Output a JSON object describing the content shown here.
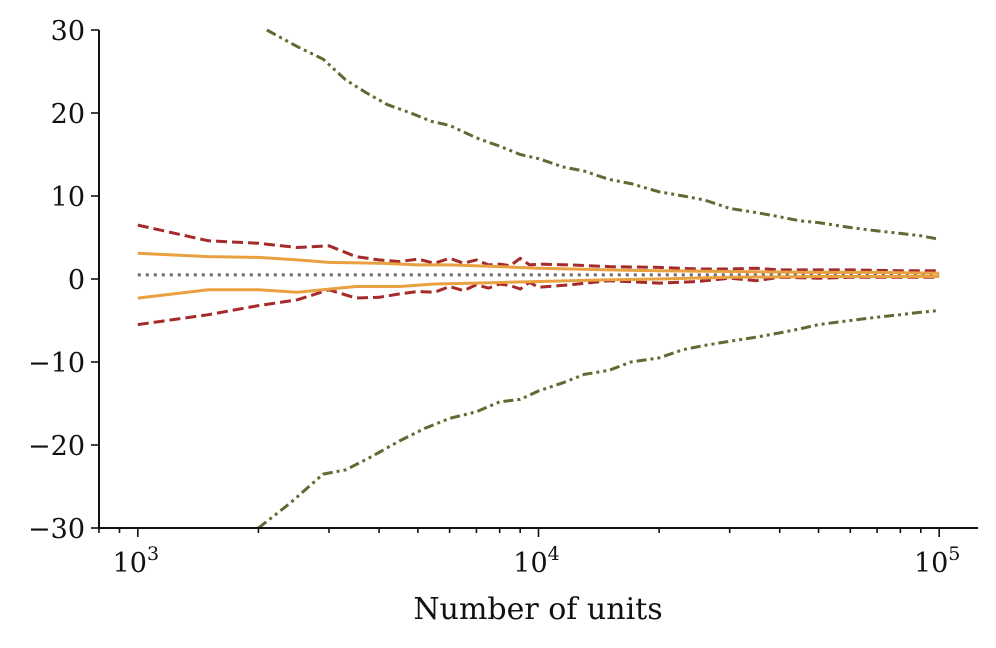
{
  "chart_data": {
    "type": "line",
    "title": "",
    "xlabel": "Number of units",
    "ylabel": "",
    "xscale": "log",
    "xlim": [
      800,
      125000
    ],
    "ylim": [
      -30,
      30
    ],
    "grid": false,
    "legend": "none",
    "x_ticks": [
      {
        "value": 1000,
        "mantissa": "10",
        "exponent": "3"
      },
      {
        "value": 10000,
        "mantissa": "10",
        "exponent": "4"
      },
      {
        "value": 100000,
        "mantissa": "10",
        "exponent": "5"
      }
    ],
    "y_ticks": [
      {
        "value": 30,
        "label": "30"
      },
      {
        "value": 20,
        "label": "20"
      },
      {
        "value": 10,
        "label": "10"
      },
      {
        "value": 0,
        "label": "0"
      },
      {
        "value": -10,
        "label": "−10"
      },
      {
        "value": -20,
        "label": "−20"
      },
      {
        "value": -30,
        "label": "−30"
      }
    ],
    "series": [
      {
        "style": "dotted",
        "color": "#6b6b6b",
        "points": [
          [
            1000,
            0.5
          ],
          [
            100000,
            0.5
          ]
        ]
      },
      {
        "style": "dashdotdot",
        "color": "#5f6b32",
        "points": [
          [
            2100,
            30
          ],
          [
            2500,
            28
          ],
          [
            2900,
            26.5
          ],
          [
            3300,
            24
          ],
          [
            3700,
            22.5
          ],
          [
            4200,
            21
          ],
          [
            4800,
            20
          ],
          [
            5400,
            19
          ],
          [
            6000,
            18.5
          ],
          [
            7000,
            17
          ],
          [
            8000,
            16
          ],
          [
            9000,
            15
          ],
          [
            10000,
            14.5
          ],
          [
            11500,
            13.5
          ],
          [
            13000,
            13
          ],
          [
            15000,
            12
          ],
          [
            17000,
            11.5
          ],
          [
            20000,
            10.5
          ],
          [
            23000,
            10
          ],
          [
            26000,
            9.5
          ],
          [
            30000,
            8.5
          ],
          [
            35000,
            8
          ],
          [
            40000,
            7.5
          ],
          [
            45000,
            7
          ],
          [
            50000,
            6.8
          ],
          [
            60000,
            6.2
          ],
          [
            70000,
            5.8
          ],
          [
            80000,
            5.5
          ],
          [
            90000,
            5.2
          ],
          [
            100000,
            4.8
          ]
        ]
      },
      {
        "style": "dashdotdot",
        "color": "#5f6b32",
        "points": [
          [
            2000,
            -30
          ],
          [
            2400,
            -27
          ],
          [
            2900,
            -23.5
          ],
          [
            3300,
            -23
          ],
          [
            3800,
            -21.5
          ],
          [
            4500,
            -19.5
          ],
          [
            5200,
            -18
          ],
          [
            6000,
            -16.8
          ],
          [
            7000,
            -16
          ],
          [
            8000,
            -14.8
          ],
          [
            9000,
            -14.5
          ],
          [
            10000,
            -13.5
          ],
          [
            11500,
            -12.5
          ],
          [
            13000,
            -11.5
          ],
          [
            15000,
            -11
          ],
          [
            17000,
            -10
          ],
          [
            20000,
            -9.5
          ],
          [
            23000,
            -8.5
          ],
          [
            26000,
            -8
          ],
          [
            30000,
            -7.5
          ],
          [
            35000,
            -7
          ],
          [
            40000,
            -6.5
          ],
          [
            45000,
            -6
          ],
          [
            50000,
            -5.5
          ],
          [
            60000,
            -5
          ],
          [
            70000,
            -4.6
          ],
          [
            80000,
            -4.3
          ],
          [
            90000,
            -4
          ],
          [
            100000,
            -3.8
          ]
        ]
      },
      {
        "style": "dashed",
        "color": "#a52a2a",
        "points": [
          [
            1000,
            6.5
          ],
          [
            1500,
            4.6
          ],
          [
            2000,
            4.3
          ],
          [
            2500,
            3.8
          ],
          [
            3000,
            4
          ],
          [
            3500,
            2.7
          ],
          [
            4000,
            2.3
          ],
          [
            4500,
            2.1
          ],
          [
            5000,
            2.4
          ],
          [
            5500,
            1.9
          ],
          [
            6000,
            2.5
          ],
          [
            6500,
            1.9
          ],
          [
            7000,
            2.3
          ],
          [
            7500,
            1.7
          ],
          [
            8000,
            1.8
          ],
          [
            8500,
            1.6
          ],
          [
            9000,
            2.5
          ],
          [
            9500,
            1.7
          ],
          [
            10000,
            1.8
          ],
          [
            12000,
            1.7
          ],
          [
            15000,
            1.5
          ],
          [
            20000,
            1.4
          ],
          [
            25000,
            1.2
          ],
          [
            30000,
            1.2
          ],
          [
            35000,
            1.3
          ],
          [
            40000,
            1.1
          ],
          [
            50000,
            1.1
          ],
          [
            60000,
            1.1
          ],
          [
            80000,
            1
          ],
          [
            100000,
            1
          ]
        ]
      },
      {
        "style": "dashed",
        "color": "#a52a2a",
        "points": [
          [
            1000,
            -5.5
          ],
          [
            1500,
            -4.3
          ],
          [
            2000,
            -3.2
          ],
          [
            2500,
            -2.5
          ],
          [
            3000,
            -1.3
          ],
          [
            3500,
            -2.3
          ],
          [
            4000,
            -2.2
          ],
          [
            4500,
            -1.8
          ],
          [
            5000,
            -1.5
          ],
          [
            5500,
            -1.6
          ],
          [
            6000,
            -0.9
          ],
          [
            6500,
            -1.4
          ],
          [
            7000,
            -0.7
          ],
          [
            7500,
            -1.1
          ],
          [
            8000,
            -0.6
          ],
          [
            8500,
            -0.8
          ],
          [
            9000,
            -1.2
          ],
          [
            9500,
            -0.4
          ],
          [
            10000,
            -1
          ],
          [
            12000,
            -0.7
          ],
          [
            15000,
            -0.2
          ],
          [
            20000,
            -0.5
          ],
          [
            25000,
            -0.3
          ],
          [
            30000,
            0.1
          ],
          [
            35000,
            -0.2
          ],
          [
            40000,
            0.2
          ],
          [
            50000,
            0.1
          ],
          [
            60000,
            0.2
          ],
          [
            80000,
            0.2
          ],
          [
            100000,
            0.2
          ]
        ]
      },
      {
        "style": "solid",
        "color": "#e8a040",
        "points": [
          [
            1000,
            3.1
          ],
          [
            1500,
            2.7
          ],
          [
            2000,
            2.6
          ],
          [
            2500,
            2.3
          ],
          [
            3000,
            2
          ],
          [
            4000,
            1.9
          ],
          [
            5000,
            1.7
          ],
          [
            6000,
            1.7
          ],
          [
            8000,
            1.5
          ],
          [
            10000,
            1.3
          ],
          [
            15000,
            1.1
          ],
          [
            20000,
            1
          ],
          [
            30000,
            0.9
          ],
          [
            50000,
            0.8
          ],
          [
            70000,
            0.8
          ],
          [
            100000,
            0.7
          ]
        ]
      },
      {
        "style": "solid",
        "color": "#e8a040",
        "points": [
          [
            1000,
            -2.3
          ],
          [
            1500,
            -1.3
          ],
          [
            2000,
            -1.3
          ],
          [
            2500,
            -1.6
          ],
          [
            3500,
            -0.9
          ],
          [
            4500,
            -0.9
          ],
          [
            5500,
            -0.6
          ],
          [
            7000,
            -0.5
          ],
          [
            10000,
            -0.3
          ],
          [
            15000,
            -0.1
          ],
          [
            20000,
            0
          ],
          [
            30000,
            0.2
          ],
          [
            50000,
            0.3
          ],
          [
            70000,
            0.3
          ],
          [
            100000,
            0.3
          ]
        ]
      }
    ]
  }
}
